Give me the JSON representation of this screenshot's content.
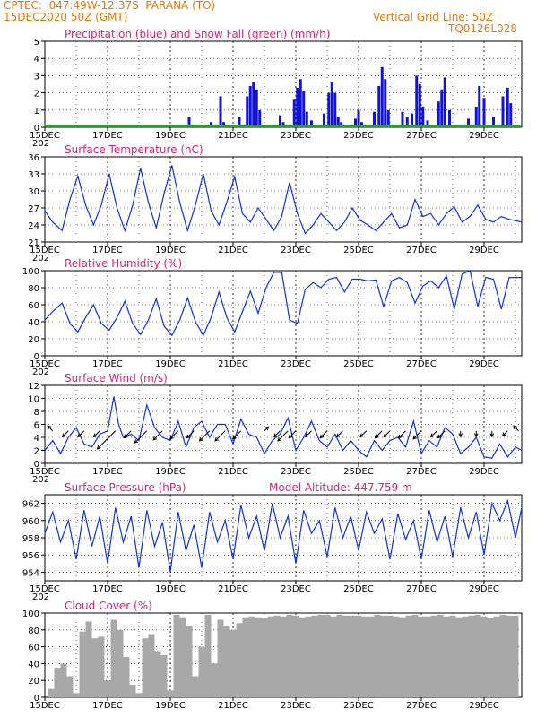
{
  "header": {
    "line1": "CPTEC:  047:49W-12:37S  PARANA (TO)",
    "line2": "15DEC2020 50Z (GMT)",
    "grid_note": "Vertical Grid Line: 50Z",
    "run_id": "TQ0126L028"
  },
  "colors": {
    "header": "#e07a10",
    "title": "#e0207a",
    "precip": "#1010e0",
    "snow": "#10b010",
    "line": "#1030e0",
    "cloud": "#a8a8a8",
    "wind_arrow": "#000000"
  },
  "x_axis": {
    "tick_labels": [
      "15DEC",
      "17DEC",
      "19DEC",
      "21DEC",
      "23DEC",
      "25DEC",
      "27DEC",
      "29DEC"
    ],
    "tick_days": [
      15,
      17,
      19,
      21,
      23,
      25,
      27,
      29
    ],
    "partial_label": "202",
    "range_days": [
      15,
      30.2
    ]
  },
  "chart_data": [
    {
      "id": "precip",
      "type": "bar",
      "title": "Precipitation (blue) and Snow Fall (green) (mm/h)",
      "ylim": [
        0,
        5
      ],
      "yticks": [
        0,
        1,
        2,
        3,
        4,
        5
      ],
      "grid": true,
      "series": [
        {
          "name": "Precipitation",
          "color": "#1010e0",
          "x": [
            19.6,
            20.3,
            20.6,
            20.7,
            21.2,
            21.45,
            21.55,
            21.65,
            21.75,
            21.85,
            22.5,
            22.6,
            22.95,
            23.05,
            23.15,
            23.25,
            23.35,
            23.5,
            23.9,
            24.05,
            24.15,
            24.25,
            24.35,
            24.45,
            24.9,
            25.0,
            25.1,
            25.5,
            25.65,
            25.75,
            25.85,
            25.95,
            26.4,
            26.55,
            26.7,
            26.85,
            26.95,
            27.05,
            27.2,
            27.55,
            27.65,
            27.75,
            27.9,
            28.5,
            28.75,
            28.85,
            29.0,
            29.3,
            29.6,
            29.75,
            29.85
          ],
          "values": [
            0.6,
            0.3,
            1.8,
            0.3,
            0.6,
            1.8,
            2.4,
            2.6,
            2.2,
            1.0,
            0.7,
            0.3,
            1.6,
            2.3,
            2.8,
            2.1,
            0.9,
            0.4,
            0.8,
            2.0,
            2.6,
            2.0,
            0.6,
            0.3,
            0.5,
            1.0,
            0.3,
            0.9,
            2.4,
            3.5,
            2.8,
            1.0,
            0.9,
            0.6,
            0.8,
            3.0,
            2.5,
            1.2,
            0.4,
            1.5,
            2.2,
            2.9,
            1.0,
            0.5,
            1.2,
            2.4,
            1.7,
            0.6,
            1.8,
            2.3,
            1.4
          ]
        },
        {
          "name": "Snow Fall",
          "color": "#10b010",
          "x": [
            15,
            30.2
          ],
          "values": [
            0,
            0
          ]
        }
      ]
    },
    {
      "id": "temp",
      "type": "line",
      "title": "Surface Temperature (nC)",
      "ylim": [
        21,
        36
      ],
      "yticks": [
        21,
        24,
        27,
        30,
        33,
        36
      ],
      "grid": true,
      "x": [
        15.0,
        15.25,
        15.55,
        15.8,
        16.05,
        16.3,
        16.55,
        16.8,
        17.05,
        17.3,
        17.55,
        17.8,
        18.05,
        18.3,
        18.55,
        18.8,
        19.05,
        19.3,
        19.55,
        19.8,
        20.05,
        20.3,
        20.55,
        20.8,
        21.05,
        21.3,
        21.55,
        21.8,
        22.05,
        22.3,
        22.55,
        22.8,
        23.05,
        23.3,
        23.55,
        23.8,
        24.05,
        24.3,
        24.55,
        24.8,
        25.05,
        25.3,
        25.55,
        25.8,
        26.05,
        26.3,
        26.55,
        26.8,
        27.05,
        27.3,
        27.55,
        27.8,
        28.05,
        28.3,
        28.55,
        28.8,
        29.05,
        29.3,
        29.55,
        29.8,
        30.2
      ],
      "y": [
        26.5,
        24.5,
        23.0,
        28.5,
        32.6,
        27.5,
        24.0,
        27.5,
        33.0,
        27.0,
        23.0,
        27.5,
        34.0,
        28.0,
        23.5,
        29.5,
        34.5,
        28.0,
        23.0,
        27.5,
        33.0,
        26.5,
        24.0,
        28.0,
        32.5,
        26.0,
        24.5,
        27.0,
        25.0,
        23.0,
        25.5,
        31.5,
        26.0,
        22.5,
        24.0,
        26.0,
        24.5,
        23.0,
        24.5,
        27.0,
        24.8,
        24.0,
        23.0,
        24.5,
        26.0,
        23.5,
        24.0,
        28.5,
        25.5,
        26.0,
        24.0,
        26.0,
        27.2,
        24.5,
        25.5,
        27.5,
        25.0,
        24.5,
        25.5,
        25.0,
        24.5
      ]
    },
    {
      "id": "rh",
      "type": "line",
      "title": "Relative Humidity (%)",
      "ylim": [
        0,
        100
      ],
      "yticks": [
        0,
        20,
        40,
        60,
        80,
        100
      ],
      "grid": true,
      "x": [
        15.0,
        15.25,
        15.55,
        15.8,
        16.05,
        16.3,
        16.55,
        16.8,
        17.05,
        17.3,
        17.55,
        17.8,
        18.05,
        18.3,
        18.55,
        18.8,
        19.05,
        19.3,
        19.55,
        19.8,
        20.05,
        20.3,
        20.55,
        20.8,
        21.05,
        21.3,
        21.55,
        21.8,
        22.05,
        22.3,
        22.55,
        22.8,
        23.05,
        23.3,
        23.55,
        23.8,
        24.05,
        24.3,
        24.55,
        24.8,
        25.05,
        25.3,
        25.55,
        25.8,
        26.05,
        26.3,
        26.55,
        26.8,
        27.05,
        27.3,
        27.55,
        27.8,
        28.05,
        28.3,
        28.55,
        28.8,
        29.05,
        29.3,
        29.55,
        29.8,
        30.2
      ],
      "y": [
        42,
        52,
        62,
        38,
        28,
        45,
        60,
        38,
        30,
        45,
        64,
        38,
        25,
        42,
        67,
        35,
        24,
        42,
        68,
        40,
        24,
        45,
        75,
        45,
        28,
        52,
        76,
        50,
        80,
        98,
        98,
        42,
        38,
        78,
        86,
        80,
        90,
        92,
        75,
        90,
        90,
        88,
        89,
        58,
        88,
        92,
        86,
        62,
        82,
        88,
        80,
        94,
        55,
        96,
        100,
        58,
        92,
        90,
        55,
        92,
        92
      ]
    },
    {
      "id": "wind",
      "type": "line",
      "title": "Surface Wind (m/s)",
      "ylim": [
        0,
        12
      ],
      "yticks": [
        0,
        2,
        4,
        6,
        8,
        10,
        12
      ],
      "grid": true,
      "x": [
        15.0,
        15.25,
        15.5,
        15.75,
        16.0,
        16.25,
        16.5,
        16.75,
        17.0,
        17.2,
        17.35,
        17.5,
        17.75,
        18.0,
        18.25,
        18.5,
        18.75,
        19.0,
        19.25,
        19.5,
        19.75,
        20.0,
        20.25,
        20.5,
        20.75,
        21.0,
        21.25,
        21.5,
        21.75,
        22.0,
        22.25,
        22.5,
        22.75,
        23.0,
        23.25,
        23.5,
        23.75,
        24.0,
        24.25,
        24.5,
        24.75,
        25.0,
        25.25,
        25.5,
        25.75,
        26.0,
        26.25,
        26.5,
        26.75,
        27.0,
        27.25,
        27.5,
        27.75,
        28.0,
        28.25,
        28.5,
        28.75,
        29.0,
        29.25,
        29.5,
        29.75,
        30.0,
        30.2
      ],
      "y": [
        2.0,
        3.5,
        1.5,
        4.0,
        5.5,
        3.0,
        2.5,
        4.5,
        5.0,
        10.3,
        6.0,
        4.0,
        4.5,
        3.5,
        9.0,
        5.5,
        4.0,
        3.5,
        6.5,
        2.5,
        5.5,
        6.5,
        4.0,
        6.0,
        6.0,
        3.0,
        6.8,
        4.5,
        4.0,
        1.5,
        3.5,
        4.5,
        7.0,
        2.0,
        4.0,
        6.5,
        3.5,
        2.5,
        4.5,
        2.0,
        3.5,
        2.0,
        1.0,
        3.5,
        2.0,
        3.5,
        4.0,
        2.5,
        6.5,
        1.5,
        3.5,
        2.5,
        5.5,
        4.5,
        1.5,
        2.5,
        4.0,
        1.0,
        0.8,
        3.0,
        1.0,
        2.5,
        2.0
      ],
      "arrows": {
        "x": [
          15.25,
          15.75,
          16.25,
          16.75,
          17.25,
          17.75,
          18.25,
          18.75,
          19.25,
          19.75,
          20.25,
          20.75,
          21.25,
          22.0,
          22.5,
          22.75,
          23.0,
          23.5,
          24.0,
          24.5,
          25.25,
          25.75,
          26.0,
          26.5,
          27.0,
          27.5,
          27.75,
          28.25,
          28.75,
          29.25,
          29.75,
          30.1
        ],
        "dir": [
          "NW",
          "SW",
          "SW",
          "SW",
          "SW",
          "SW",
          "SW",
          "SW",
          "SW",
          "SW",
          "SW",
          "SW",
          "SW",
          "NE",
          "SW",
          "SW",
          "SW",
          "SW",
          "SW",
          "SW",
          "SW",
          "SW",
          "SW",
          "SW",
          "SW",
          "SW",
          "SW",
          "S",
          "S",
          "S",
          "SW",
          "NW"
        ],
        "len": [
          2.5,
          3.0,
          3.0,
          3.0,
          9.0,
          3.5,
          6.0,
          4.5,
          4.0,
          3.5,
          5.0,
          5.0,
          4.0,
          2.0,
          3.0,
          5.0,
          3.5,
          3.0,
          3.5,
          3.0,
          3.0,
          3.5,
          3.0,
          3.5,
          4.0,
          3.0,
          3.5,
          2.0,
          2.0,
          2.0,
          2.5,
          2.5
        ]
      }
    },
    {
      "id": "pressure",
      "type": "line",
      "title": "Surface Pressure (hPa)",
      "extra_label": "Model Altitude: 447.759 m",
      "ylim": [
        953,
        963
      ],
      "yticks": [
        954,
        956,
        958,
        960,
        962
      ],
      "grid": true,
      "x": [
        15.0,
        15.25,
        15.5,
        15.75,
        16.0,
        16.25,
        16.5,
        16.75,
        17.0,
        17.25,
        17.5,
        17.75,
        18.0,
        18.25,
        18.5,
        18.75,
        19.0,
        19.25,
        19.5,
        19.75,
        20.0,
        20.25,
        20.5,
        20.75,
        21.0,
        21.25,
        21.5,
        21.75,
        22.0,
        22.25,
        22.5,
        22.75,
        23.0,
        23.25,
        23.5,
        23.75,
        24.0,
        24.25,
        24.5,
        24.75,
        25.0,
        25.25,
        25.5,
        25.75,
        26.0,
        26.25,
        26.5,
        26.75,
        27.0,
        27.25,
        27.5,
        27.75,
        28.0,
        28.25,
        28.5,
        28.75,
        29.0,
        29.25,
        29.5,
        29.75,
        30.0,
        30.2
      ],
      "y": [
        958.5,
        961.0,
        957.5,
        960.0,
        955.5,
        961.2,
        957.0,
        960.5,
        955.0,
        961.5,
        957.5,
        960.5,
        954.5,
        961.2,
        957.0,
        959.8,
        954.0,
        961.0,
        956.5,
        959.5,
        954.5,
        961.0,
        957.5,
        960.0,
        955.5,
        961.8,
        958.0,
        960.5,
        956.5,
        962.0,
        958.0,
        960.5,
        955.0,
        961.2,
        958.5,
        960.0,
        955.8,
        961.5,
        958.0,
        960.5,
        956.5,
        961.0,
        958.5,
        960.2,
        955.5,
        960.8,
        957.8,
        960.0,
        955.5,
        961.2,
        957.5,
        960.5,
        955.8,
        961.5,
        958.0,
        961.0,
        956.0,
        962.0,
        960.0,
        962.3,
        958.0,
        961.5
      ]
    },
    {
      "id": "cloud",
      "type": "bar",
      "title": "Cloud Cover (%)",
      "ylim": [
        0,
        100
      ],
      "yticks": [
        0,
        20,
        40,
        60,
        80,
        100
      ],
      "grid": true,
      "x": [
        15.2,
        15.4,
        15.6,
        15.8,
        16.0,
        16.2,
        16.4,
        16.6,
        16.8,
        17.0,
        17.2,
        17.4,
        17.6,
        17.8,
        18.0,
        18.2,
        18.4,
        18.6,
        18.8,
        19.0,
        19.2,
        19.4,
        19.6,
        19.8,
        20.0,
        20.2,
        20.4,
        20.6,
        20.8,
        21.0,
        21.2,
        21.4,
        21.6,
        21.8,
        22.0,
        22.2,
        22.4,
        22.6,
        22.8,
        23.0,
        23.2,
        23.4,
        23.6,
        23.8,
        24.0,
        24.2,
        24.4,
        24.6,
        24.8,
        25.0,
        25.2,
        25.4,
        25.6,
        25.8,
        26.0,
        26.2,
        26.4,
        26.6,
        26.8,
        27.0,
        27.2,
        27.4,
        27.6,
        27.8,
        28.0,
        28.2,
        28.4,
        28.6,
        28.8,
        29.0,
        29.2,
        29.4,
        29.6,
        29.8,
        30.0
      ],
      "values": [
        10,
        35,
        40,
        25,
        5,
        78,
        90,
        70,
        72,
        20,
        92,
        80,
        48,
        15,
        5,
        70,
        75,
        55,
        50,
        8,
        98,
        95,
        85,
        25,
        60,
        98,
        40,
        92,
        85,
        80,
        88,
        95,
        96,
        95,
        94,
        96,
        97,
        96,
        98,
        97,
        95,
        96,
        97,
        98,
        98,
        96,
        98,
        97,
        97,
        97,
        96,
        96,
        98,
        97,
        97,
        96,
        95,
        97,
        98,
        96,
        96,
        97,
        98,
        96,
        97,
        95,
        96,
        97,
        98,
        96,
        94,
        96,
        98,
        97,
        97
      ]
    }
  ]
}
